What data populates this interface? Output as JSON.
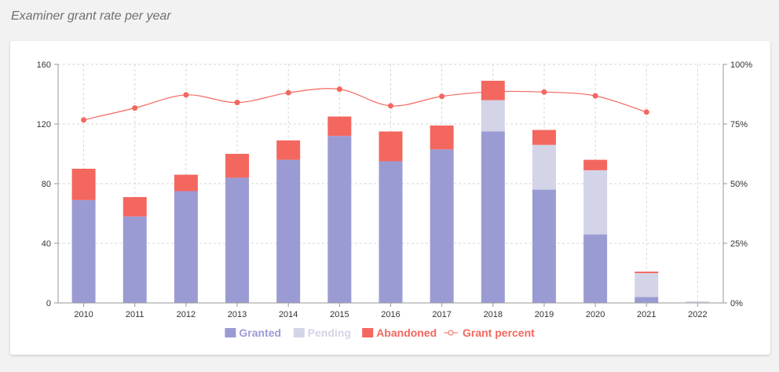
{
  "page": {
    "heading": "Examiner grant rate per year"
  },
  "chart_data": {
    "type": "bar",
    "stacked": true,
    "categories": [
      "2010",
      "2011",
      "2012",
      "2013",
      "2014",
      "2015",
      "2016",
      "2017",
      "2018",
      "2019",
      "2020",
      "2021",
      "2022"
    ],
    "series": [
      {
        "name": "Granted",
        "color": "#9b9bd4",
        "values": [
          69,
          58,
          75,
          84,
          96,
          112,
          95,
          103,
          115,
          76,
          46,
          4,
          0
        ]
      },
      {
        "name": "Pending",
        "color": "#d4d4e8",
        "values": [
          0,
          0,
          0,
          0,
          0,
          0,
          0,
          0,
          21,
          30,
          43,
          16,
          1
        ]
      },
      {
        "name": "Abandoned",
        "color": "#f4675f",
        "values": [
          21,
          13,
          11,
          16,
          13,
          13,
          20,
          16,
          13,
          10,
          7,
          1,
          0
        ]
      }
    ],
    "line_series": {
      "name": "Grant percent",
      "color": "#f4675f",
      "axis": "right",
      "values": [
        76.7,
        81.7,
        87.2,
        84.0,
        88.1,
        89.6,
        82.6,
        86.6,
        88.5,
        88.4,
        86.8,
        80.0,
        null
      ]
    },
    "ylim": [
      0,
      160
    ],
    "yticks": [
      "0",
      "40",
      "80",
      "120",
      "160"
    ],
    "y2lim": [
      0,
      100
    ],
    "y2ticks": [
      "0%",
      "25%",
      "50%",
      "75%",
      "100%"
    ],
    "grid": true,
    "legend": "bottom"
  }
}
